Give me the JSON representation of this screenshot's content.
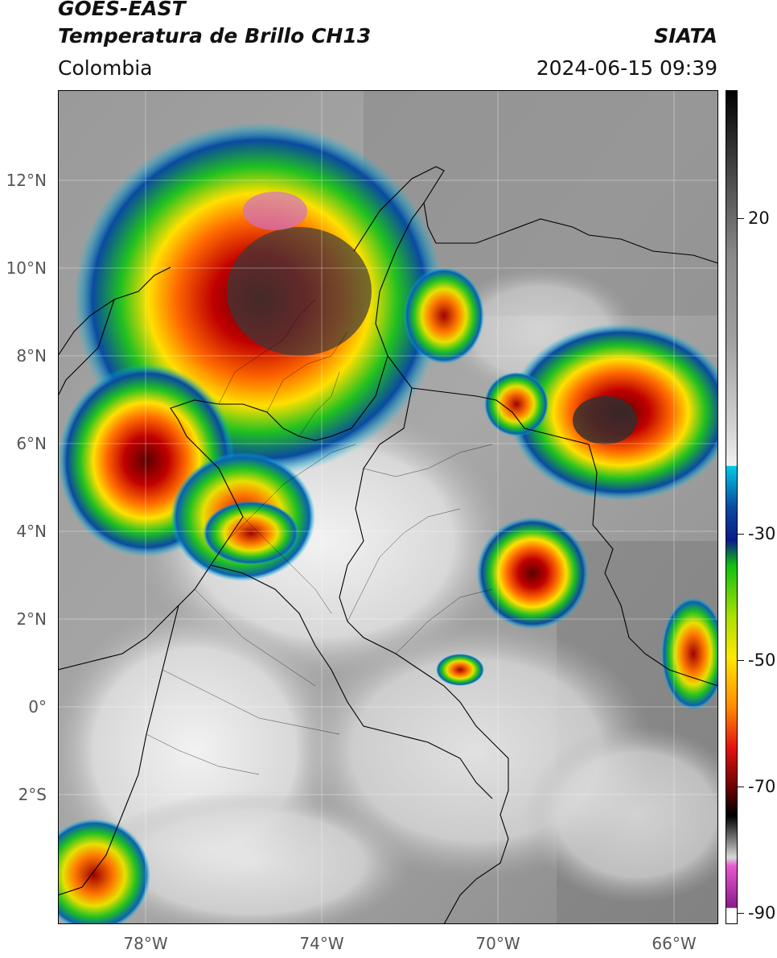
{
  "header": {
    "satellite": "GOES-EAST",
    "product": "Temperatura de Brillo CH13",
    "region": "Colombia",
    "agency": "SIATA",
    "datetime": "2024-06-15 09:39"
  },
  "map": {
    "lon_range": [
      -80,
      -65
    ],
    "lat_range": [
      -4.9,
      14.1
    ],
    "lat_labels": [
      {
        "value": 12,
        "text": "12°N"
      },
      {
        "value": 10,
        "text": "10°N"
      },
      {
        "value": 8,
        "text": "8°N"
      },
      {
        "value": 6,
        "text": "6°N"
      },
      {
        "value": 4,
        "text": "4°N"
      },
      {
        "value": 2,
        "text": "2°N"
      },
      {
        "value": 0,
        "text": "0°"
      },
      {
        "value": -2,
        "text": "2°S"
      }
    ],
    "lon_labels": [
      {
        "value": -78,
        "text": "78°W"
      },
      {
        "value": -74,
        "text": "74°W"
      },
      {
        "value": -70,
        "text": "70°W"
      },
      {
        "value": -66,
        "text": "66°W"
      }
    ]
  },
  "colorbar": {
    "range": [
      -92,
      36
    ],
    "ticks": [
      {
        "value": 20,
        "text": "20"
      },
      {
        "value": -30,
        "text": "-30"
      },
      {
        "value": -50,
        "text": "-50"
      },
      {
        "value": -70,
        "text": "-70"
      },
      {
        "value": -90,
        "text": "-90"
      }
    ],
    "colors": {
      "warm_gray_top": "#000000",
      "cyan": "#00c8e6",
      "blue": "#0a2a9a",
      "green": "#10c010",
      "yellow": "#ffe800",
      "orange": "#ff8a00",
      "red": "#e01010",
      "dark_red": "#600000",
      "black": "#000000",
      "pink": "#e85ad0",
      "purple": "#8a1a8a"
    }
  }
}
